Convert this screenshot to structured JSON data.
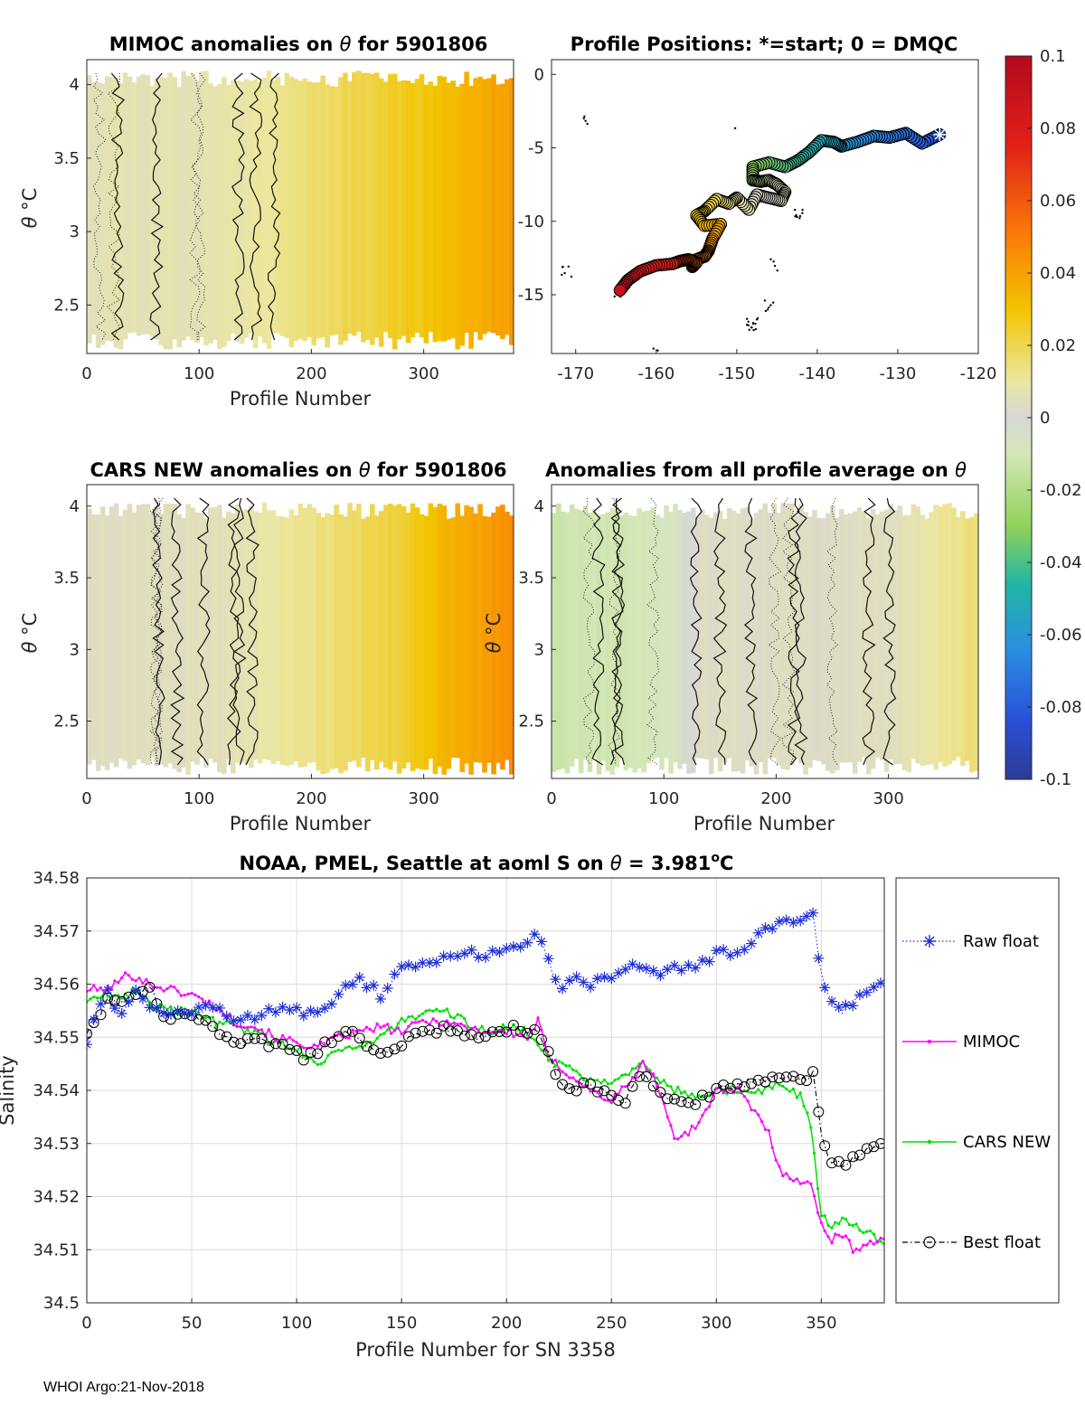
{
  "footer": "WHOI Argo:21-Nov-2018",
  "colors": {
    "raw": "#1f2fd6",
    "mimoc": "#ff00ff",
    "cars": "#00e000",
    "best": "#000000",
    "grid": "#dcdcdc",
    "background_grey": "#d7d7d7"
  },
  "chart_data": [
    {
      "id": "mimoc",
      "type": "heatmap",
      "title_pre": "MIMOC anomalies on ",
      "title_sym": "θ",
      "title_post": "  for 5901806",
      "xlabel": "Profile Number",
      "ylabel_sym": "θ",
      "ylabel_unit": "°C",
      "xlim": [
        0,
        380
      ],
      "ylim": [
        2.17,
        4.17
      ],
      "xticks": [
        0,
        100,
        200,
        300
      ],
      "yticks": [
        2.5,
        3,
        3.5,
        4
      ],
      "value_range": [
        -0.1,
        0.1
      ],
      "anomaly_ramp": {
        "profile": [
          0,
          100,
          150,
          200,
          260,
          300,
          340,
          380
        ],
        "anomaly": [
          0.008,
          0.008,
          0.012,
          0.018,
          0.024,
          0.029,
          0.035,
          0.042
        ]
      }
    },
    {
      "id": "positions",
      "type": "scatter",
      "title": "Profile Positions: *=start; 0 = DMQC",
      "xlim": [
        -173,
        -120
      ],
      "ylim": [
        -19,
        1
      ],
      "xticks": [
        -170,
        -160,
        -150,
        -140,
        -130,
        -120
      ],
      "yticks": [
        0,
        -5,
        -10,
        -15
      ],
      "track": {
        "lon": [
          -124.8,
          -127,
          -129,
          -131,
          -133,
          -135,
          -137,
          -138,
          -139.5,
          -141,
          -142.5,
          -144,
          -146,
          -148,
          -148,
          -147,
          -146,
          -145,
          -144,
          -144.5,
          -146,
          -147.5,
          -148.5,
          -150,
          -151,
          -152.5,
          -154,
          -155,
          -154,
          -152,
          -153,
          -153.5,
          -154,
          -155,
          -155.5,
          -155,
          -156,
          -157,
          -158,
          -160,
          -162,
          -163.5,
          -164.5
        ],
        "lat": [
          -4.1,
          -4.7,
          -4.0,
          -4.3,
          -4.2,
          -4.6,
          -4.9,
          -4.6,
          -4.5,
          -5.3,
          -5.9,
          -6.3,
          -6.0,
          -6.3,
          -7.2,
          -7.3,
          -7.2,
          -7.5,
          -8.0,
          -8.6,
          -8.4,
          -8.2,
          -9.2,
          -8.4,
          -8.8,
          -8.5,
          -9.3,
          -9.6,
          -10.3,
          -10.2,
          -11.2,
          -12.0,
          -12.4,
          -12.6,
          -13.1,
          -12.8,
          -12.6,
          -12.7,
          -12.9,
          -13.0,
          -13.4,
          -14.0,
          -14.7
        ]
      },
      "anomaly_range_on_track": [
        0.09,
        -0.085
      ],
      "start_marker": {
        "lon": -124.8,
        "lat": -4.1,
        "symbol": "*"
      }
    },
    {
      "id": "cars",
      "type": "heatmap",
      "title_pre": "CARS NEW anomalies on ",
      "title_sym": "θ",
      "title_post": " for 5901806",
      "xlabel": "Profile Number",
      "ylabel_sym": "θ",
      "ylabel_unit": "°C",
      "xlim": [
        0,
        380
      ],
      "ylim": [
        2.1,
        4.15
      ],
      "xticks": [
        0,
        100,
        200,
        300
      ],
      "yticks": [
        2.5,
        3,
        3.5,
        4
      ],
      "value_range": [
        -0.1,
        0.1
      ],
      "anomaly_ramp": {
        "profile": [
          0,
          120,
          170,
          220,
          270,
          300,
          340,
          380
        ],
        "anomaly": [
          0.005,
          0.006,
          0.012,
          0.017,
          0.023,
          0.03,
          0.038,
          0.046
        ]
      }
    },
    {
      "id": "allprof",
      "type": "heatmap",
      "title_pre": "Anomalies from all profile average on ",
      "title_sym": "θ",
      "title_post": "",
      "xlabel": "Profile Number",
      "ylabel_sym": "θ",
      "ylabel_unit": "°C",
      "xlim": [
        0,
        380
      ],
      "ylim": [
        2.1,
        4.15
      ],
      "xticks": [
        0,
        100,
        200,
        300
      ],
      "yticks": [
        2.5,
        3,
        3.5,
        4
      ],
      "value_range": [
        -0.1,
        0.1
      ],
      "anomaly_ramp": {
        "profile": [
          0,
          60,
          110,
          130,
          200,
          300,
          340,
          380
        ],
        "anomaly": [
          -0.014,
          -0.013,
          -0.009,
          0.004,
          0.004,
          0.005,
          0.012,
          0.018
        ]
      }
    },
    {
      "id": "colorbar",
      "type": "colorbar",
      "range": [
        -0.1,
        0.1
      ],
      "tick_values": [
        0.1,
        0.08,
        0.06,
        0.04,
        0.02,
        0,
        -0.02,
        -0.04,
        -0.06,
        -0.08,
        -0.1
      ],
      "tick_labels": [
        "0.1",
        "0.08",
        "0.06",
        "0.04",
        "0.02",
        "0",
        "-0.02",
        "-0.04",
        "-0.06",
        "-0.08",
        "-0.1"
      ]
    },
    {
      "id": "salinity",
      "type": "line",
      "title_pre": "NOAA, PMEL, Seattle at aoml S on ",
      "title_sym": "θ",
      "title_eq": " = 3.981",
      "title_sup": "o",
      "title_post": "C",
      "xlabel": "Profile Number for SN 3358",
      "ylabel": "Salinity",
      "xlim": [
        0,
        380
      ],
      "ylim": [
        34.5,
        34.58
      ],
      "xticks": [
        0,
        50,
        100,
        150,
        200,
        250,
        300,
        350
      ],
      "yticks": [
        34.5,
        34.51,
        34.52,
        34.53,
        34.54,
        34.55,
        34.56,
        34.57,
        34.58
      ],
      "grid": true,
      "legend_position": "right-outside",
      "series": [
        {
          "name": "Raw float",
          "style": "dotted-star",
          "x": [
            0,
            5,
            10,
            15,
            20,
            25,
            30,
            40,
            50,
            60,
            70,
            80,
            90,
            100,
            110,
            120,
            130,
            140,
            150,
            160,
            170,
            180,
            190,
            200,
            210,
            215,
            220,
            225,
            230,
            240,
            250,
            260,
            270,
            280,
            290,
            300,
            310,
            320,
            330,
            340,
            346,
            350,
            355,
            360,
            370,
            380
          ],
          "y": [
            34.549,
            34.556,
            34.559,
            34.554,
            34.557,
            34.559,
            34.556,
            34.554,
            34.555,
            34.556,
            34.553,
            34.554,
            34.555,
            34.555,
            34.554,
            34.558,
            34.561,
            34.558,
            34.563,
            34.564,
            34.565,
            34.566,
            34.565,
            34.567,
            34.568,
            34.569,
            34.565,
            34.558,
            34.561,
            34.56,
            34.561,
            34.563,
            34.562,
            34.563,
            34.563,
            34.566,
            34.566,
            34.569,
            34.572,
            34.572,
            34.573,
            34.562,
            34.556,
            34.555,
            34.558,
            34.56
          ]
        },
        {
          "name": "MIMOC",
          "style": "solid-dot",
          "x": [
            0,
            10,
            20,
            25,
            30,
            40,
            50,
            60,
            70,
            80,
            90,
            100,
            110,
            120,
            130,
            140,
            150,
            160,
            170,
            180,
            190,
            200,
            210,
            215,
            220,
            230,
            240,
            250,
            260,
            265,
            270,
            280,
            290,
            300,
            310,
            320,
            325,
            330,
            340,
            345,
            350,
            355,
            360,
            365,
            370,
            380
          ],
          "y": [
            34.559,
            34.559,
            34.562,
            34.561,
            34.56,
            34.559,
            34.558,
            34.556,
            34.553,
            34.552,
            34.55,
            34.549,
            34.548,
            34.55,
            34.551,
            34.552,
            34.551,
            34.553,
            34.553,
            34.552,
            34.551,
            34.551,
            34.55,
            34.553,
            34.546,
            34.543,
            34.54,
            34.538,
            34.542,
            34.545,
            34.543,
            34.531,
            34.533,
            34.54,
            34.54,
            34.535,
            34.532,
            34.525,
            34.523,
            34.522,
            34.515,
            34.512,
            34.513,
            34.51,
            34.511,
            34.512
          ]
        },
        {
          "name": "CARS NEW",
          "style": "solid-dot",
          "x": [
            0,
            10,
            20,
            25,
            30,
            40,
            50,
            60,
            70,
            80,
            90,
            100,
            110,
            120,
            130,
            140,
            150,
            160,
            170,
            180,
            190,
            200,
            210,
            215,
            220,
            230,
            240,
            250,
            260,
            265,
            270,
            280,
            290,
            300,
            310,
            320,
            330,
            340,
            345,
            350,
            355,
            360,
            365,
            370,
            380
          ],
          "y": [
            34.557,
            34.558,
            34.558,
            34.559,
            34.556,
            34.555,
            34.555,
            34.553,
            34.552,
            34.551,
            34.549,
            34.548,
            34.545,
            34.548,
            34.548,
            34.55,
            34.553,
            34.554,
            34.555,
            34.553,
            34.551,
            34.552,
            34.551,
            34.549,
            34.546,
            34.544,
            34.542,
            34.542,
            34.544,
            34.545,
            34.543,
            34.54,
            34.539,
            34.54,
            34.54,
            34.54,
            34.541,
            34.539,
            34.533,
            34.517,
            34.514,
            34.516,
            34.515,
            34.514,
            34.511
          ]
        },
        {
          "name": "Best float",
          "style": "dashdot-circle",
          "x": [
            0,
            5,
            10,
            15,
            20,
            25,
            30,
            35,
            45,
            55,
            65,
            75,
            85,
            95,
            105,
            115,
            125,
            135,
            145,
            155,
            165,
            175,
            185,
            195,
            205,
            215,
            220,
            225,
            230,
            235,
            245,
            255,
            260,
            265,
            270,
            280,
            290,
            300,
            310,
            320,
            330,
            340,
            346,
            350,
            355,
            360,
            370,
            380
          ],
          "y": [
            34.551,
            34.554,
            34.557,
            34.556,
            34.558,
            34.558,
            34.56,
            34.554,
            34.554,
            34.553,
            34.55,
            34.549,
            34.549,
            34.548,
            34.546,
            34.549,
            34.551,
            34.548,
            34.547,
            34.55,
            34.551,
            34.552,
            34.55,
            34.551,
            34.552,
            34.551,
            34.547,
            34.542,
            34.54,
            34.541,
            34.54,
            34.537,
            34.541,
            34.543,
            34.54,
            34.538,
            34.538,
            34.54,
            34.541,
            34.542,
            34.543,
            34.542,
            34.543,
            34.532,
            34.526,
            34.526,
            34.528,
            34.53
          ]
        }
      ]
    }
  ]
}
